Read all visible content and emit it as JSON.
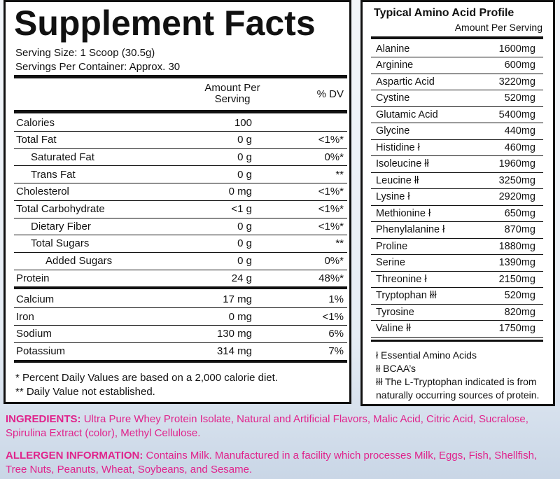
{
  "supplement_facts": {
    "title": "Supplement Facts",
    "serving_size": "Serving Size: 1 Scoop (30.5g)",
    "servings_per_container": "Servings Per Container: Approx. 30",
    "header": {
      "amount": "Amount Per Serving",
      "dv": "% DV"
    },
    "rows": [
      {
        "name": "Calories",
        "amount": "100"
      },
      {
        "name": "Total Fat",
        "amount": "0 g",
        "dv": "<1%*"
      },
      {
        "name": "Saturated Fat",
        "amount": "0 g",
        "dv": "0%*"
      },
      {
        "name": "Trans Fat",
        "amount": "0 g",
        "dv": "**"
      },
      {
        "name": "Cholesterol",
        "amount": "0 mg",
        "dv": "<1%*"
      },
      {
        "name": "Total Carbohydrate",
        "amount": "<1 g",
        "dv": "<1%*"
      },
      {
        "name": "Dietary Fiber",
        "amount": "0 g",
        "dv": "<1%*"
      },
      {
        "name": "Total Sugars",
        "amount": "0 g",
        "dv": "**"
      },
      {
        "name": "Added Sugars",
        "amount": "0 g",
        "dv": "0%*"
      },
      {
        "name": "Protein",
        "amount": "24 g",
        "dv": "48%*"
      },
      {
        "name": "Calcium",
        "amount": "17 mg",
        "dv": "1%"
      },
      {
        "name": "Iron",
        "amount": "0 mg",
        "dv": "<1%"
      },
      {
        "name": "Sodium",
        "amount": "130 mg",
        "dv": "6%"
      },
      {
        "name": "Potassium",
        "amount": "314 mg",
        "dv": "7%"
      }
    ],
    "footnotes": [
      "* Percent Daily Values are based on a 2,000 calorie diet.",
      "** Daily Value not established."
    ]
  },
  "amino_profile": {
    "title": "Typical Amino Acid Profile",
    "subtitle": "Amount Per Serving",
    "rows": [
      {
        "name": "Alanine",
        "amount": "1600mg"
      },
      {
        "name": "Arginine",
        "amount": "600mg"
      },
      {
        "name": "Aspartic Acid",
        "amount": "3220mg"
      },
      {
        "name": "Cystine",
        "amount": "520mg"
      },
      {
        "name": "Glutamic Acid",
        "amount": "5400mg"
      },
      {
        "name": "Glycine",
        "amount": "440mg"
      },
      {
        "name": "Histidine ł",
        "amount": "460mg"
      },
      {
        "name": "Isoleucine łł",
        "amount": "1960mg"
      },
      {
        "name": "Leucine łł",
        "amount": "3250mg"
      },
      {
        "name": "Lysine ł",
        "amount": "2920mg"
      },
      {
        "name": "Methionine ł",
        "amount": "650mg"
      },
      {
        "name": "Phenylalanine ł",
        "amount": "870mg"
      },
      {
        "name": "Proline",
        "amount": "1880mg"
      },
      {
        "name": "Serine",
        "amount": "1390mg"
      },
      {
        "name": "Threonine ł",
        "amount": "2150mg"
      },
      {
        "name": "Tryptophan łłł",
        "amount": "520mg"
      },
      {
        "name": "Tyrosine",
        "amount": "820mg"
      },
      {
        "name": "Valine łł",
        "amount": "1750mg"
      }
    ],
    "legend": [
      "ł Essential Amino Acids",
      "łł BCAA’s",
      "łłł The L-Tryptophan indicated is from",
      "naturally occurring sources of protein."
    ]
  },
  "ingredients": {
    "label": "INGREDIENTS:",
    "text": "Ultra Pure Whey Protein Isolate, Natural and Artificial Flavors, Malic Acid, Citric Acid, Sucralose, Spirulina Extract (color), Methyl Cellulose."
  },
  "allergen": {
    "label": "ALLERGEN INFORMATION:",
    "text": "Contains Milk. Manufactured in a facility which processes Milk, Eggs, Fish, Shellfish, Tree Nuts, Peanuts, Wheat, Soybeans, and Sesame."
  }
}
